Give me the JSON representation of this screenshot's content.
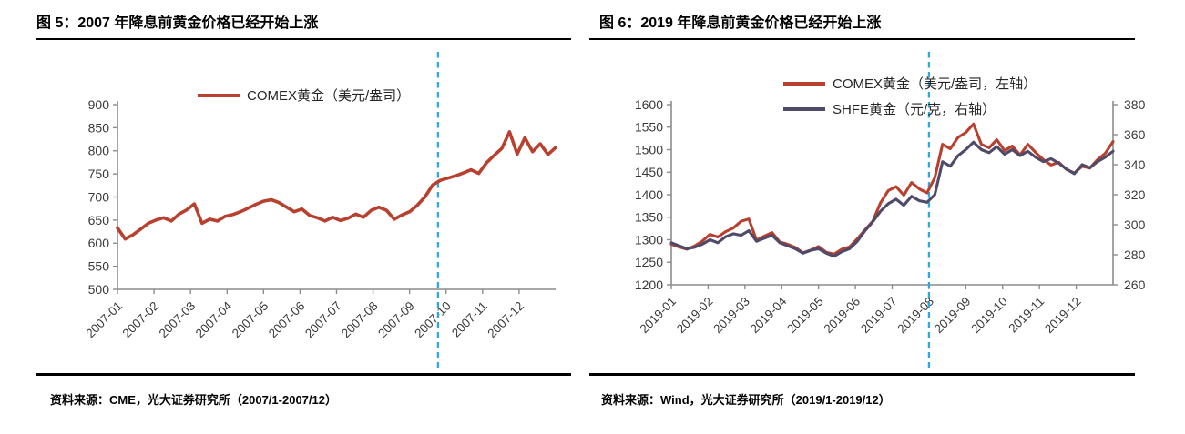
{
  "chart_data": [
    {
      "type": "line",
      "title": "图 5：2007 年降息前黄金价格已经开始上涨",
      "source": "资料来源：CME，光大证券研究所（2007/1-2007/12）",
      "x_labels": [
        "2007-01",
        "2007-02",
        "2007-03",
        "2007-04",
        "2007-05",
        "2007-06",
        "2007-07",
        "2007-08",
        "2007-09",
        "2007-10",
        "2007-11",
        "2007-12"
      ],
      "ylim_left": [
        500,
        900
      ],
      "yticks_left": [
        500,
        550,
        600,
        650,
        700,
        750,
        800,
        850,
        900
      ],
      "grid": false,
      "legend_position": "top-center",
      "series": [
        {
          "name": "COMEX黄金（美元/盎司）",
          "color": "#b8402e",
          "axis": "left",
          "values": [
            633,
            609,
            618,
            630,
            643,
            650,
            655,
            648,
            663,
            672,
            685,
            643,
            652,
            648,
            658,
            662,
            668,
            676,
            684,
            691,
            694,
            688,
            678,
            668,
            674,
            660,
            655,
            648,
            656,
            649,
            654,
            663,
            656,
            671,
            678,
            671,
            652,
            661,
            668,
            682,
            700,
            726,
            736,
            741,
            746,
            752,
            759,
            751,
            774,
            790,
            805,
            841,
            793,
            828,
            798,
            815,
            792,
            807
          ]
        }
      ],
      "event_line": {
        "meaning": "first Fed rate cut (2007-09)",
        "x_month_index": 8.78,
        "color": "#2fa8e0",
        "style": "dashed"
      }
    },
    {
      "type": "line",
      "title": "图 6：2019 年降息前黄金价格已经开始上涨",
      "source": "资料来源：Wind，光大证券研究所（2019/1-2019/12）",
      "x_labels": [
        "2019-01",
        "2019-02",
        "2019-03",
        "2019-04",
        "2019-05",
        "2019-06",
        "2019-07",
        "2019-08",
        "2019-09",
        "2019-10",
        "2019-11",
        "2019-12"
      ],
      "ylim_left": [
        1200,
        1600
      ],
      "yticks_left": [
        1200,
        1250,
        1300,
        1350,
        1400,
        1450,
        1500,
        1550,
        1600
      ],
      "ylim_right": [
        260,
        380
      ],
      "yticks_right": [
        260,
        280,
        300,
        320,
        340,
        360,
        380
      ],
      "grid": false,
      "legend_position": "top-center-stacked",
      "series": [
        {
          "name": "COMEX黄金（美元/盎司，左轴）",
          "color": "#b8402e",
          "axis": "left",
          "values": [
            1290,
            1284,
            1279,
            1286,
            1297,
            1312,
            1306,
            1318,
            1326,
            1341,
            1346,
            1299,
            1308,
            1316,
            1295,
            1290,
            1283,
            1271,
            1277,
            1285,
            1272,
            1268,
            1279,
            1284,
            1302,
            1322,
            1341,
            1382,
            1409,
            1418,
            1399,
            1427,
            1413,
            1404,
            1438,
            1512,
            1502,
            1527,
            1538,
            1557,
            1512,
            1504,
            1522,
            1498,
            1508,
            1488,
            1512,
            1494,
            1478,
            1466,
            1472,
            1456,
            1448,
            1463,
            1459,
            1478,
            1492,
            1518
          ]
        },
        {
          "name": "SHFE黄金（元/克，右轴）",
          "color": "#4e4a68",
          "axis": "right",
          "values": [
            288,
            286,
            284,
            285,
            287,
            290,
            288,
            292,
            294,
            293,
            296,
            289,
            291,
            293,
            288,
            286,
            284,
            281,
            283,
            284,
            281,
            279,
            282,
            284,
            289,
            296,
            302,
            309,
            314,
            317,
            313,
            319,
            316,
            315,
            320,
            342,
            339,
            346,
            350,
            355,
            350,
            348,
            352,
            347,
            350,
            346,
            349,
            345,
            342,
            344,
            341,
            337,
            334,
            340,
            338,
            342,
            345,
            349
          ]
        }
      ],
      "event_line": {
        "meaning": "first Fed rate cut (2019-07/08)",
        "x_month_index": 7.0,
        "color": "#2fa8e0",
        "style": "dashed"
      }
    }
  ]
}
